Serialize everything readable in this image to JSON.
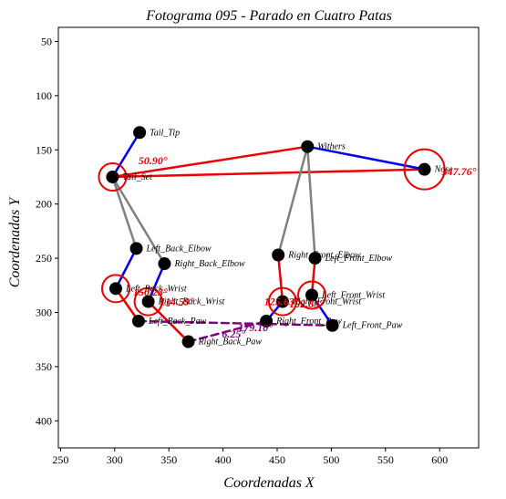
{
  "chart_data": {
    "type": "scatter",
    "title": "Fotograma 095 - Parado en Cuatro Patas",
    "xlabel": "Coordenadas X",
    "ylabel": "Coordenadas Y",
    "xlim": [
      248,
      636
    ],
    "ylim": [
      425,
      37
    ],
    "x_ticks": [
      250,
      300,
      350,
      400,
      450,
      500,
      550,
      600
    ],
    "y_ticks": [
      50,
      100,
      150,
      200,
      250,
      300,
      350,
      400
    ],
    "grid": false,
    "keypoints": [
      {
        "name": "Tail_Tip",
        "x": 323,
        "y": 134
      },
      {
        "name": "Tail_Set",
        "x": 298,
        "y": 175
      },
      {
        "name": "Withers",
        "x": 478,
        "y": 147
      },
      {
        "name": "Nose",
        "x": 586,
        "y": 168
      },
      {
        "name": "Left_Back_Elbow",
        "x": 320,
        "y": 241
      },
      {
        "name": "Right_Back_Elbow",
        "x": 346,
        "y": 255
      },
      {
        "name": "Left_Back_Wrist",
        "x": 301,
        "y": 278
      },
      {
        "name": "Right_Back_Wrist",
        "x": 331,
        "y": 290
      },
      {
        "name": "Left_Back_Paw",
        "x": 322,
        "y": 308
      },
      {
        "name": "Right_Back_Paw",
        "x": 368,
        "y": 327
      },
      {
        "name": "Right_Front_Elbow",
        "x": 451,
        "y": 247
      },
      {
        "name": "Left_Front_Elbow",
        "x": 485,
        "y": 250
      },
      {
        "name": "Left_Front_Wrist",
        "x": 482,
        "y": 284
      },
      {
        "name": "Right_Front_Wrist",
        "x": 455,
        "y": 290
      },
      {
        "name": "Right_Front_Paw",
        "x": 440,
        "y": 308
      },
      {
        "name": "Left_Front_Paw",
        "x": 501,
        "y": 312
      }
    ],
    "connections": [
      {
        "from": "Tail_Tip",
        "to": "Tail_Set",
        "color": "#0000ee",
        "style": "solid"
      },
      {
        "from": "Tail_Set",
        "to": "Withers",
        "color": "#ee0000",
        "style": "solid"
      },
      {
        "from": "Tail_Set",
        "to": "Nose",
        "color": "#ee0000",
        "style": "solid"
      },
      {
        "from": "Withers",
        "to": "Nose",
        "color": "#0000ee",
        "style": "solid"
      },
      {
        "from": "Tail_Set",
        "to": "Left_Back_Elbow",
        "color": "#808080",
        "style": "solid"
      },
      {
        "from": "Tail_Set",
        "to": "Right_Back_Elbow",
        "color": "#808080",
        "style": "solid"
      },
      {
        "from": "Withers",
        "to": "Right_Front_Elbow",
        "color": "#808080",
        "style": "solid"
      },
      {
        "from": "Withers",
        "to": "Left_Front_Elbow",
        "color": "#808080",
        "style": "solid"
      },
      {
        "from": "Left_Back_Elbow",
        "to": "Left_Back_Wrist",
        "color": "#0000ee",
        "style": "solid"
      },
      {
        "from": "Right_Back_Elbow",
        "to": "Right_Back_Wrist",
        "color": "#0000ee",
        "style": "solid"
      },
      {
        "from": "Left_Back_Wrist",
        "to": "Left_Back_Paw",
        "color": "#ee0000",
        "style": "solid"
      },
      {
        "from": "Right_Back_Wrist",
        "to": "Right_Back_Paw",
        "color": "#ee0000",
        "style": "solid"
      },
      {
        "from": "Right_Front_Elbow",
        "to": "Right_Front_Wrist",
        "color": "#ee0000",
        "style": "solid"
      },
      {
        "from": "Left_Front_Elbow",
        "to": "Left_Front_Wrist",
        "color": "#ee0000",
        "style": "solid"
      },
      {
        "from": "Right_Front_Wrist",
        "to": "Right_Front_Paw",
        "color": "#0000ee",
        "style": "solid"
      },
      {
        "from": "Left_Front_Wrist",
        "to": "Left_Front_Paw",
        "color": "#0000ee",
        "style": "solid"
      },
      {
        "from": "Left_Back_Paw",
        "to": "Left_Front_Paw",
        "color": "#800080",
        "style": "dashed"
      },
      {
        "from": "Right_Back_Paw",
        "to": "Right_Front_Paw",
        "color": "#800080",
        "style": "dashed"
      }
    ],
    "angles": [
      {
        "at": "Tail_Set",
        "label": "50.90°",
        "x": 322,
        "y": 160,
        "color": "#ee0000"
      },
      {
        "at": "Nose",
        "label": "347.76°",
        "x": 602,
        "y": 170,
        "color": "#ee0000"
      },
      {
        "at": "Left_Back_Wrist",
        "label": "150.23°",
        "x": 317,
        "y": 281,
        "color": "#ee0000"
      },
      {
        "at": "Right_Back_Wrist",
        "label": "114.59°",
        "x": 342,
        "y": 290,
        "color": "#ee0000"
      },
      {
        "at": "Right_Front_Wrist",
        "label": "125.63°",
        "x": 438,
        "y": 290,
        "color": "#ee0000"
      },
      {
        "at": "Left_Front_Wrist",
        "label": "152.89°",
        "x": 461,
        "y": 292,
        "color": "#ee0000"
      },
      {
        "at": "Right_Front_Paw",
        "label": "179.10°",
        "x": 414,
        "y": 314,
        "color": "#800080"
      },
      {
        "at": "Right_Back_Paw",
        "label": "6.25°",
        "x": 399,
        "y": 320,
        "color": "#800080"
      }
    ],
    "colors": {
      "point": "#000000",
      "angle_red": "#ee0000",
      "angle_purple": "#800080",
      "blue": "#0000ee",
      "gray": "#808080"
    }
  }
}
